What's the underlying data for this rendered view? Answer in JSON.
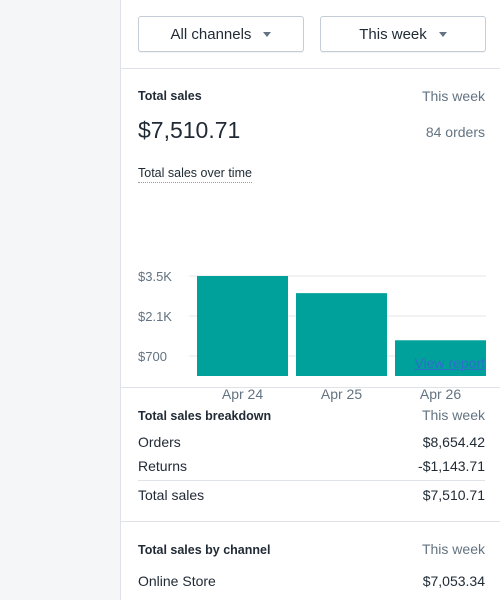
{
  "filters": {
    "channels_label": "All channels",
    "period_label": "This week"
  },
  "total_sales": {
    "title": "Total sales",
    "period": "This week",
    "amount": "$7,510.71",
    "orders": "84 orders",
    "over_time_title": "Total sales over time",
    "view_report": "View report"
  },
  "chart_data": {
    "type": "bar",
    "categories": [
      "Apr 24",
      "Apr 25",
      "Apr 26"
    ],
    "values": [
      3500,
      2900,
      1250
    ],
    "y_ticks": [
      {
        "value": 3500,
        "label": "$3.5K"
      },
      {
        "value": 2100,
        "label": "$2.1K"
      },
      {
        "value": 700,
        "label": "$700"
      }
    ],
    "ylim": [
      0,
      3500
    ],
    "bar_color": "#00a19a",
    "grid": true
  },
  "breakdown": {
    "title": "Total sales breakdown",
    "period": "This week",
    "rows": [
      {
        "label": "Orders",
        "value": "$8,654.42"
      },
      {
        "label": "Returns",
        "value": "-$1,143.71"
      }
    ],
    "total": {
      "label": "Total sales",
      "value": "$7,510.71"
    }
  },
  "by_channel": {
    "title": "Total sales by channel",
    "period": "This week",
    "rows": [
      {
        "label": "Online Store",
        "value": "$7,053.34"
      }
    ]
  }
}
